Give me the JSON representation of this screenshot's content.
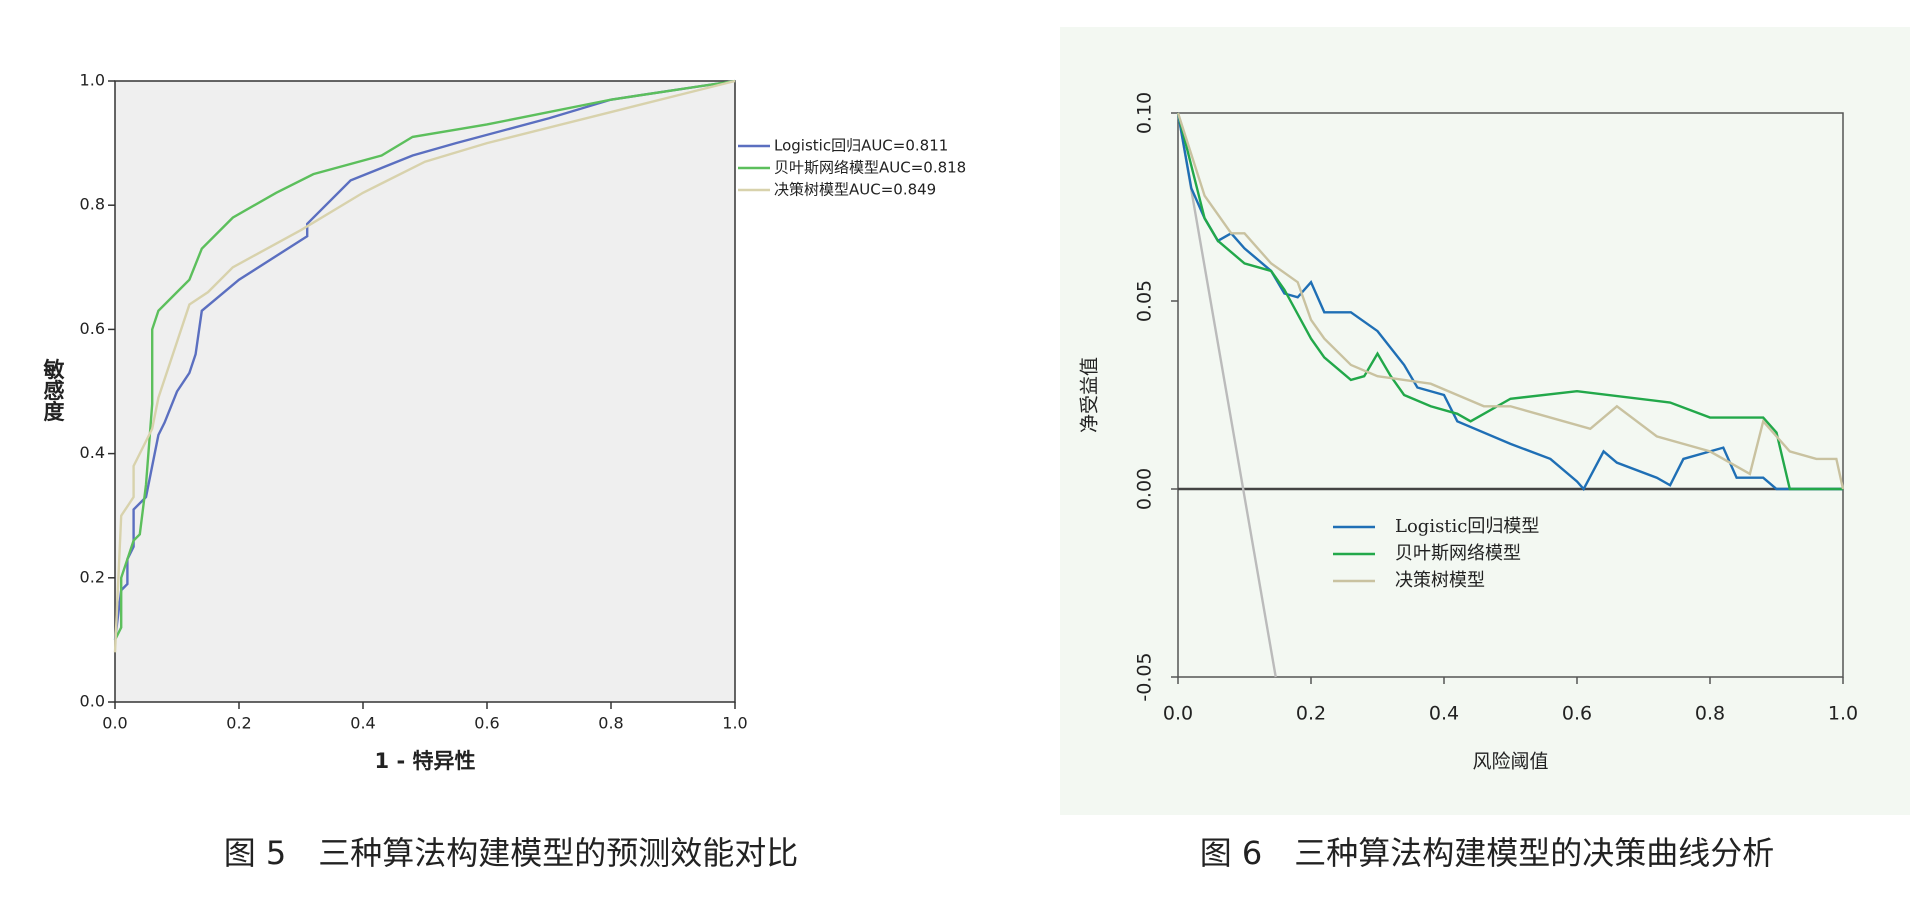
{
  "chart_data": [
    {
      "type": "line",
      "title": "图 5　三种算法构建模型的预测效能对比",
      "xlabel": "1 - 特异性",
      "ylabel": "敏感度",
      "xlim": [
        0,
        1
      ],
      "ylim": [
        0,
        1
      ],
      "xticks": [
        {
          "value": 0,
          "label": "0.0"
        },
        0.2,
        0.4,
        0.6,
        0.8,
        {
          "value": 1,
          "label": "1.0"
        }
      ],
      "yticks": [
        {
          "value": 0,
          "label": "0.0"
        },
        0.2,
        0.4,
        0.6,
        0.8,
        {
          "value": 1,
          "label": "1.0"
        }
      ],
      "legend": "right",
      "background": "#efefef",
      "series": [
        {
          "name": "Logistic回归AUC=0.811",
          "color": "#5b6fc0",
          "x": [
            0,
            0.01,
            0.02,
            0.02,
            0.03,
            0.03,
            0.05,
            0.06,
            0.07,
            0.08,
            0.1,
            0.12,
            0.13,
            0.14,
            0.2,
            0.31,
            0.31,
            0.38,
            0.48,
            0.55,
            0.7,
            0.8,
            1
          ],
          "values": [
            0.1,
            0.18,
            0.19,
            0.23,
            0.25,
            0.31,
            0.33,
            0.38,
            0.43,
            0.45,
            0.5,
            0.53,
            0.56,
            0.63,
            0.68,
            0.75,
            0.77,
            0.84,
            0.88,
            0.9,
            0.94,
            0.97,
            1
          ]
        },
        {
          "name": "贝叶斯网络模型AUC=0.818",
          "color": "#5cbf5c",
          "x": [
            0,
            0.01,
            0.01,
            0.03,
            0.04,
            0.05,
            0.06,
            0.06,
            0.07,
            0.1,
            0.12,
            0.14,
            0.19,
            0.26,
            0.32,
            0.43,
            0.48,
            0.6,
            0.8,
            1
          ],
          "values": [
            0.1,
            0.12,
            0.2,
            0.26,
            0.27,
            0.35,
            0.48,
            0.6,
            0.63,
            0.66,
            0.68,
            0.73,
            0.78,
            0.82,
            0.85,
            0.88,
            0.91,
            0.93,
            0.97,
            1
          ]
        },
        {
          "name": "决策树模型AUC=0.849",
          "color": "#d8d2ac",
          "x": [
            0,
            0.01,
            0.03,
            0.03,
            0.06,
            0.07,
            0.1,
            0.12,
            0.15,
            0.19,
            0.3,
            0.4,
            0.5,
            0.6,
            0.8,
            1
          ],
          "values": [
            0.08,
            0.3,
            0.33,
            0.38,
            0.44,
            0.49,
            0.58,
            0.64,
            0.66,
            0.7,
            0.76,
            0.82,
            0.87,
            0.9,
            0.95,
            1
          ]
        }
      ]
    },
    {
      "type": "line",
      "title": "图 6　三种算法构建模型的决策曲线分析",
      "xlabel": "风险阈值",
      "ylabel": "净受益值",
      "xlim": [
        0,
        1
      ],
      "ylim": [
        -0.05,
        0.1
      ],
      "xticks": [
        {
          "value": 0,
          "label": "0.0"
        },
        0.2,
        0.4,
        0.6,
        0.8,
        {
          "value": 1,
          "label": "1.0"
        }
      ],
      "yticks": [
        {
          "value": -0.05,
          "label": "-0.05"
        },
        {
          "value": 0,
          "label": "0.00"
        },
        0.05,
        {
          "value": 0.1,
          "label": "0.10"
        }
      ],
      "legend": "lower-left",
      "background": "#f3f8f2",
      "series": [
        {
          "color": "#444444",
          "x": [
            0,
            1
          ],
          "values": [
            0,
            0
          ]
        },
        {
          "color": "#bbbbbb",
          "x": [
            0,
            0.147
          ],
          "values": [
            0.1,
            -0.05
          ]
        },
        {
          "name": "Logistic回归模型",
          "color": "#1f6fb5",
          "x": [
            0,
            0.02,
            0.04,
            0.06,
            0.08,
            0.1,
            0.14,
            0.16,
            0.18,
            0.2,
            0.22,
            0.26,
            0.3,
            0.34,
            0.36,
            0.4,
            0.42,
            0.5,
            0.56,
            0.6,
            0.61,
            0.64,
            0.66,
            0.72,
            0.74,
            0.76,
            0.82,
            0.84,
            0.88,
            0.9,
            0.92,
            1
          ],
          "values": [
            0.1,
            0.08,
            0.072,
            0.066,
            0.068,
            0.064,
            0.058,
            0.052,
            0.051,
            0.055,
            0.047,
            0.047,
            0.042,
            0.033,
            0.027,
            0.025,
            0.018,
            0.012,
            0.008,
            0.002,
            0,
            0.01,
            0.007,
            0.003,
            0.001,
            0.008,
            0.011,
            0.003,
            0.003,
            0,
            0,
            0
          ]
        },
        {
          "name": "贝叶斯网络模型",
          "color": "#22a84a",
          "x": [
            0,
            0.04,
            0.06,
            0.1,
            0.14,
            0.16,
            0.2,
            0.22,
            0.26,
            0.28,
            0.3,
            0.32,
            0.34,
            0.38,
            0.42,
            0.44,
            0.5,
            0.6,
            0.74,
            0.8,
            0.88,
            0.9,
            0.92,
            1
          ],
          "values": [
            0.1,
            0.072,
            0.066,
            0.06,
            0.058,
            0.053,
            0.04,
            0.035,
            0.029,
            0.03,
            0.036,
            0.03,
            0.025,
            0.022,
            0.02,
            0.018,
            0.024,
            0.026,
            0.023,
            0.019,
            0.019,
            0.015,
            0,
            0
          ]
        },
        {
          "name": "决策树模型",
          "color": "#c9c2a0",
          "x": [
            0,
            0.04,
            0.08,
            0.1,
            0.14,
            0.18,
            0.2,
            0.22,
            0.26,
            0.3,
            0.34,
            0.38,
            0.42,
            0.46,
            0.5,
            0.54,
            0.62,
            0.66,
            0.72,
            0.8,
            0.86,
            0.88,
            0.92,
            0.96,
            0.99,
            1
          ],
          "values": [
            0.1,
            0.078,
            0.068,
            0.068,
            0.06,
            0.055,
            0.045,
            0.04,
            0.033,
            0.03,
            0.029,
            0.028,
            0.025,
            0.022,
            0.022,
            0.02,
            0.016,
            0.022,
            0.014,
            0.01,
            0.004,
            0.018,
            0.01,
            0.008,
            0.008,
            0
          ]
        }
      ]
    }
  ]
}
